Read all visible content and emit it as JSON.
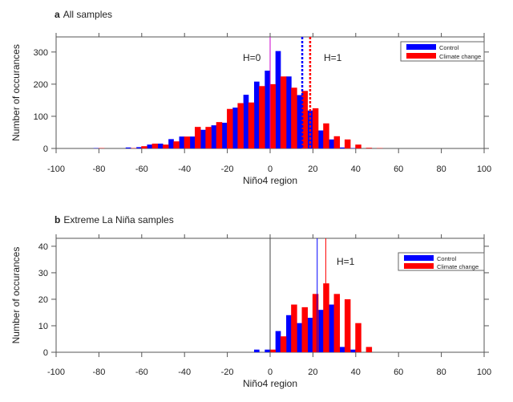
{
  "chart_data": [
    {
      "type": "bar",
      "title_letter": "a",
      "title": "All samples",
      "xlabel": "Niño4 region",
      "ylabel": "Number of occurances",
      "xlim": [
        -100,
        100
      ],
      "ylim": [
        0,
        347
      ],
      "xticks": [
        -100,
        -80,
        -60,
        -40,
        -20,
        0,
        20,
        40,
        60,
        80,
        100
      ],
      "yticks": [
        0,
        100,
        200,
        300
      ],
      "grid": false,
      "legend_position": "top-right",
      "bin_centers": [
        -80,
        -75,
        -70,
        -65,
        -60,
        -55,
        -50,
        -45,
        -40,
        -35,
        -30,
        -25,
        -20,
        -15,
        -10,
        -5,
        0,
        5,
        10,
        15,
        20,
        25,
        30,
        35,
        40,
        45,
        50
      ],
      "series": [
        {
          "name": "Control",
          "color": "#0000ff",
          "values": [
            1,
            0,
            0,
            3,
            4,
            12,
            15,
            29,
            37,
            37,
            58,
            72,
            80,
            127,
            167,
            208,
            242,
            303,
            224,
            166,
            118,
            56,
            28,
            3,
            1,
            0,
            0
          ]
        },
        {
          "name": "Climate change",
          "color": "#ff0000",
          "values": [
            1,
            0,
            0,
            1,
            7,
            15,
            12,
            22,
            37,
            67,
            67,
            82,
            123,
            141,
            143,
            194,
            200,
            224,
            189,
            179,
            125,
            78,
            38,
            28,
            12,
            2,
            1
          ]
        }
      ],
      "vlines": [
        {
          "x": 0,
          "color": "#cc00cc",
          "style": "solid"
        },
        {
          "x": 15,
          "color": "#0000ff",
          "style": "dotted"
        },
        {
          "x": 18.7,
          "color": "#ff0000",
          "style": "dotted"
        }
      ],
      "annotations": [
        "H=0",
        "H=1"
      ]
    },
    {
      "type": "bar",
      "title_letter": "b",
      "title": "Extreme La Niña samples",
      "xlabel": "Niño4 region",
      "ylabel": "Number of occurances",
      "xlim": [
        -100,
        100
      ],
      "ylim": [
        0,
        43
      ],
      "xticks": [
        -100,
        -80,
        -60,
        -40,
        -20,
        0,
        20,
        40,
        60,
        80,
        100
      ],
      "yticks": [
        0,
        10,
        20,
        30,
        40
      ],
      "grid": false,
      "legend_position": "top-right",
      "bin_centers": [
        -5,
        0,
        5,
        10,
        15,
        20,
        25,
        30,
        35,
        40,
        45
      ],
      "series": [
        {
          "name": "Control",
          "color": "#0000ff",
          "values": [
            1,
            1,
            8,
            14,
            11,
            13,
            16,
            18,
            2,
            1,
            0
          ]
        },
        {
          "name": "Climate change",
          "color": "#ff0000",
          "values": [
            0,
            1,
            6,
            18,
            17,
            22,
            26,
            22,
            20,
            11,
            2
          ]
        }
      ],
      "vlines": [
        {
          "x": 0,
          "color": "#444444",
          "style": "solid"
        },
        {
          "x": 22,
          "color": "#0000ff",
          "style": "solid"
        },
        {
          "x": 26,
          "color": "#ff0000",
          "style": "solid"
        }
      ],
      "annotations": [
        "H=1"
      ]
    }
  ]
}
